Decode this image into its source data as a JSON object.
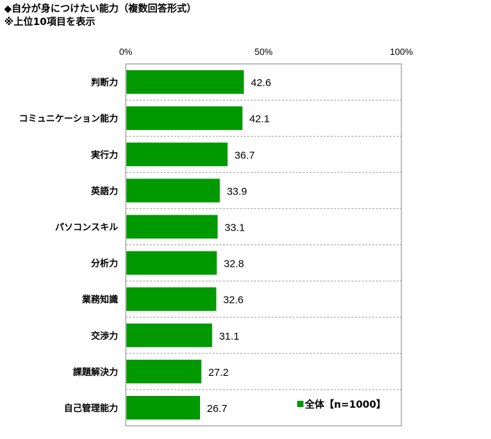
{
  "chart_data": {
    "type": "bar",
    "orientation": "horizontal",
    "title": "◆自分が身につけたい能力（複数回答形式）",
    "subtitle": "※上位10項目を表示",
    "categories": [
      "判断力",
      "コミュニケーション能力",
      "実行力",
      "英語力",
      "パソコンスキル",
      "分析力",
      "業務知識",
      "交渉力",
      "課題解決力",
      "自己管理能力"
    ],
    "series": [
      {
        "name": "全体【n=1000】",
        "values": [
          42.6,
          42.1,
          36.7,
          33.9,
          33.1,
          32.8,
          32.6,
          31.1,
          27.2,
          26.7
        ]
      }
    ],
    "xlim": [
      0,
      100
    ],
    "x_ticks": [
      "0%",
      "50%",
      "100%"
    ],
    "grid": "dashed separators between categories",
    "legend_position": "bottom-right",
    "colors": {
      "bar": "#009900",
      "frame": "#808080",
      "separator": "#a0a0a0"
    }
  }
}
